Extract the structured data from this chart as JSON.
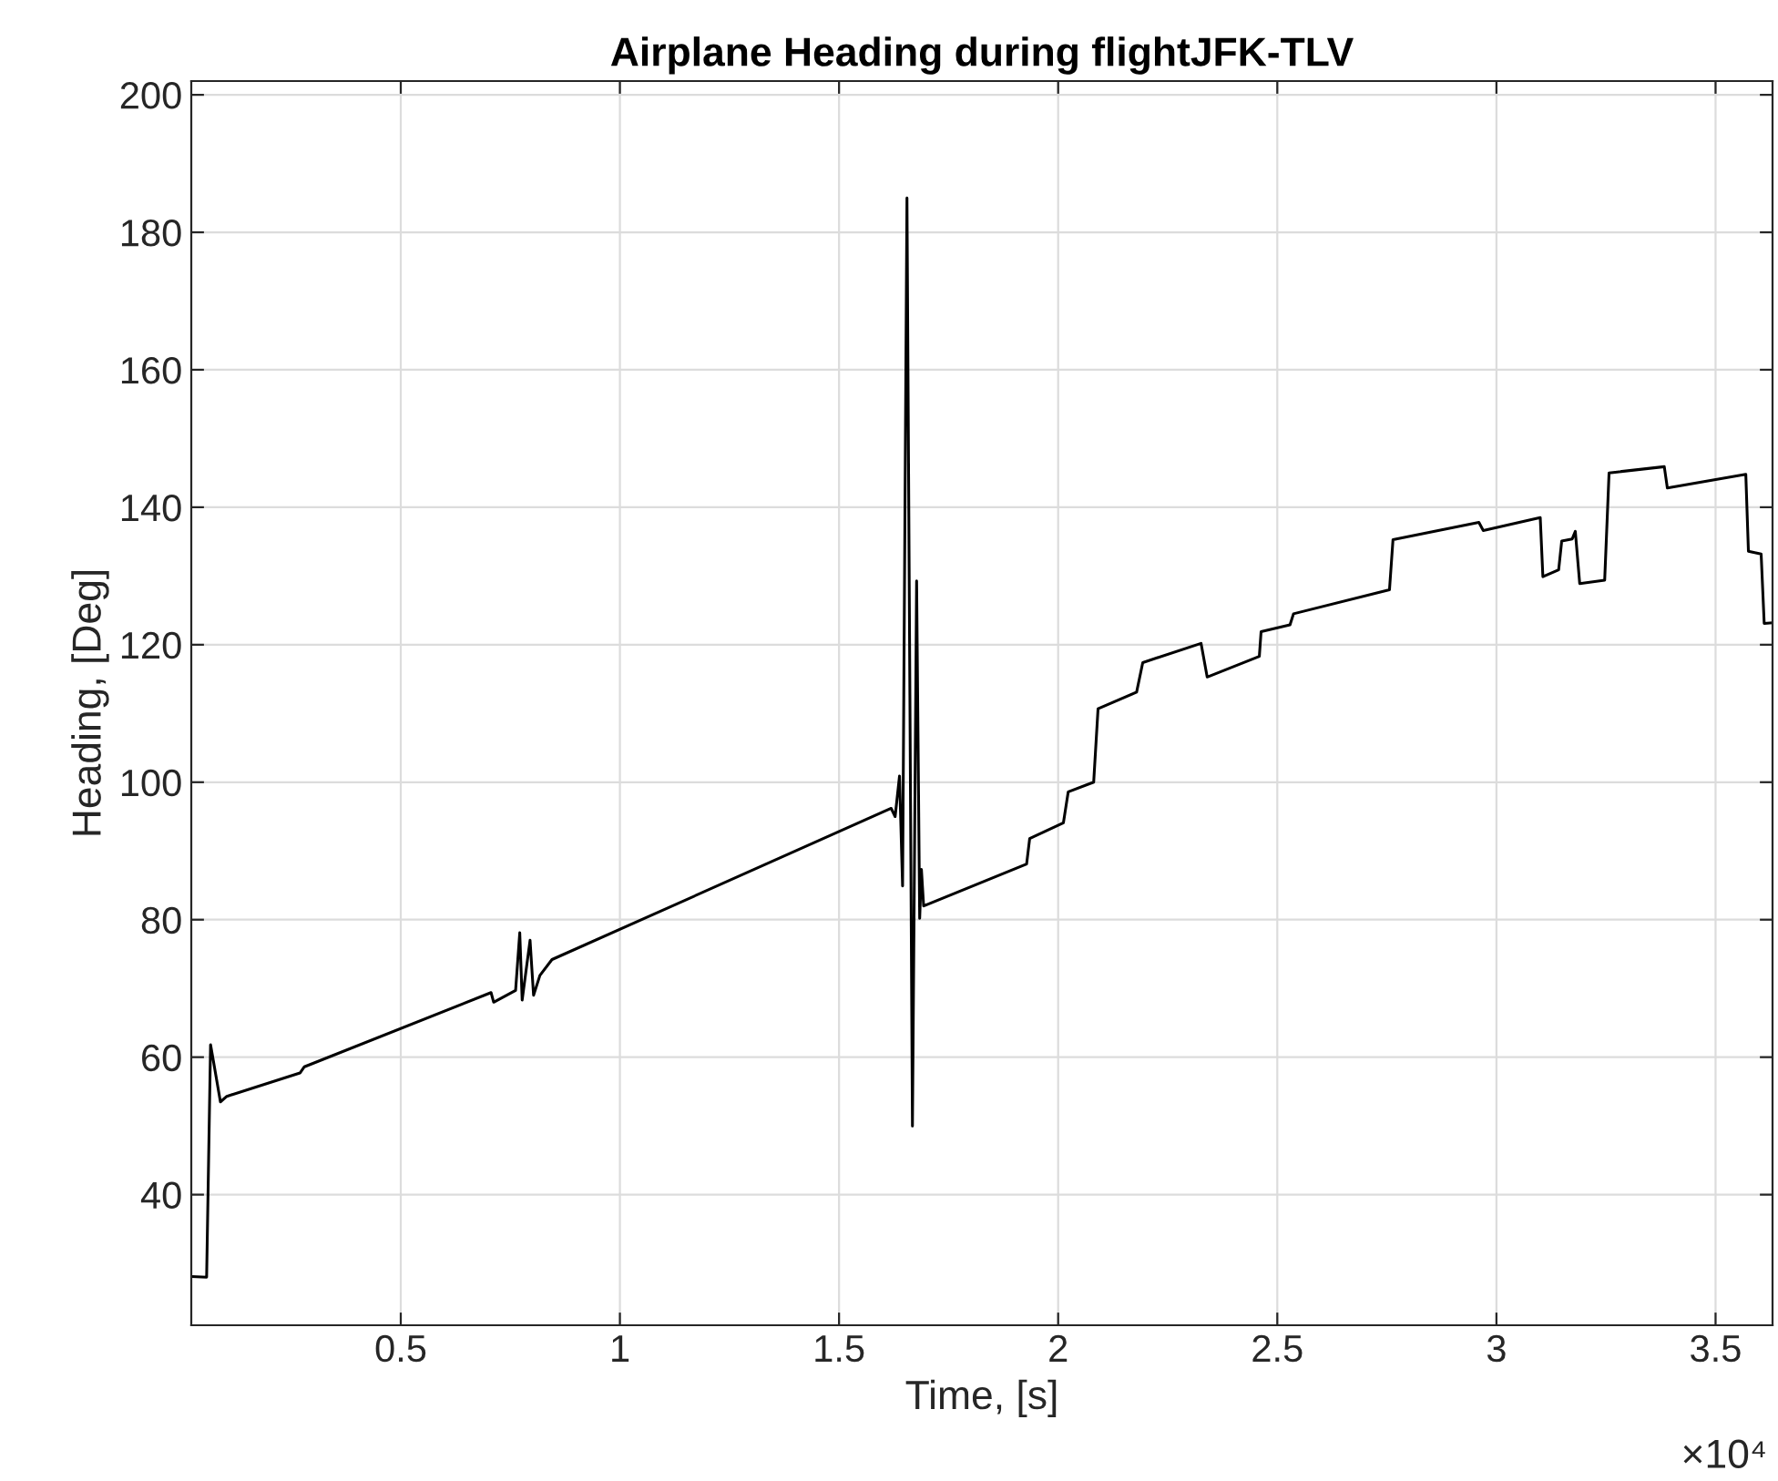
{
  "chart_data": {
    "type": "line",
    "title": "Airplane Heading during flightJFK-TLV",
    "xlabel": "Time, [s]",
    "ylabel": "Heading, [Deg]",
    "annotations": [
      "×10⁴"
    ],
    "xlim": [
      0.022,
      3.63
    ],
    "ylim": [
      21,
      202
    ],
    "xticks": [
      0.5,
      1,
      1.5,
      2,
      2.5,
      3,
      3.5
    ],
    "yticks": [
      40,
      60,
      80,
      100,
      120,
      140,
      160,
      180,
      200
    ],
    "grid": true,
    "legend": false,
    "marker": "none",
    "line_style": "solid",
    "series": [
      {
        "color": "#000000",
        "x": [
          0.022,
          0.057,
          0.066,
          0.071,
          0.0885,
          0.103,
          0.27,
          0.28,
          0.706,
          0.712,
          0.762,
          0.7715,
          0.777,
          0.795,
          0.803,
          0.8175,
          0.845,
          1.619,
          1.628,
          1.638,
          1.645,
          1.655,
          1.6675,
          1.677,
          1.684,
          1.688,
          1.693,
          1.928,
          1.935,
          2.012,
          2.023,
          2.081,
          2.091,
          2.179,
          2.193,
          2.326,
          2.34,
          2.459,
          2.463,
          2.529,
          2.537,
          2.756,
          2.764,
          2.96,
          2.97,
          3.1,
          3.106,
          3.142,
          3.149,
          3.173,
          3.18,
          3.19,
          3.247,
          3.257,
          3.383,
          3.39,
          3.569,
          3.575,
          3.604,
          3.611,
          3.63
        ],
        "values": [
          28.1,
          28,
          61.8,
          60,
          53.5,
          54.3,
          57.7,
          58.6,
          69.4,
          68,
          69.7,
          78.1,
          68.3,
          77,
          69,
          71.9,
          74.2,
          96.2,
          95,
          100.9,
          84.9,
          185,
          50,
          129.3,
          80.2,
          87.3,
          82,
          88.1,
          91.8,
          94.1,
          98.6,
          100,
          110.7,
          113.1,
          117.4,
          120.2,
          115.3,
          118.3,
          121.9,
          122.9,
          124.5,
          128,
          135.3,
          137.8,
          136.6,
          138.5,
          129.9,
          130.9,
          135.1,
          135.4,
          136.5,
          128.9,
          129.4,
          145,
          145.9,
          142.8,
          144.8,
          133.6,
          133.2,
          123.1,
          123.2
        ]
      }
    ]
  }
}
